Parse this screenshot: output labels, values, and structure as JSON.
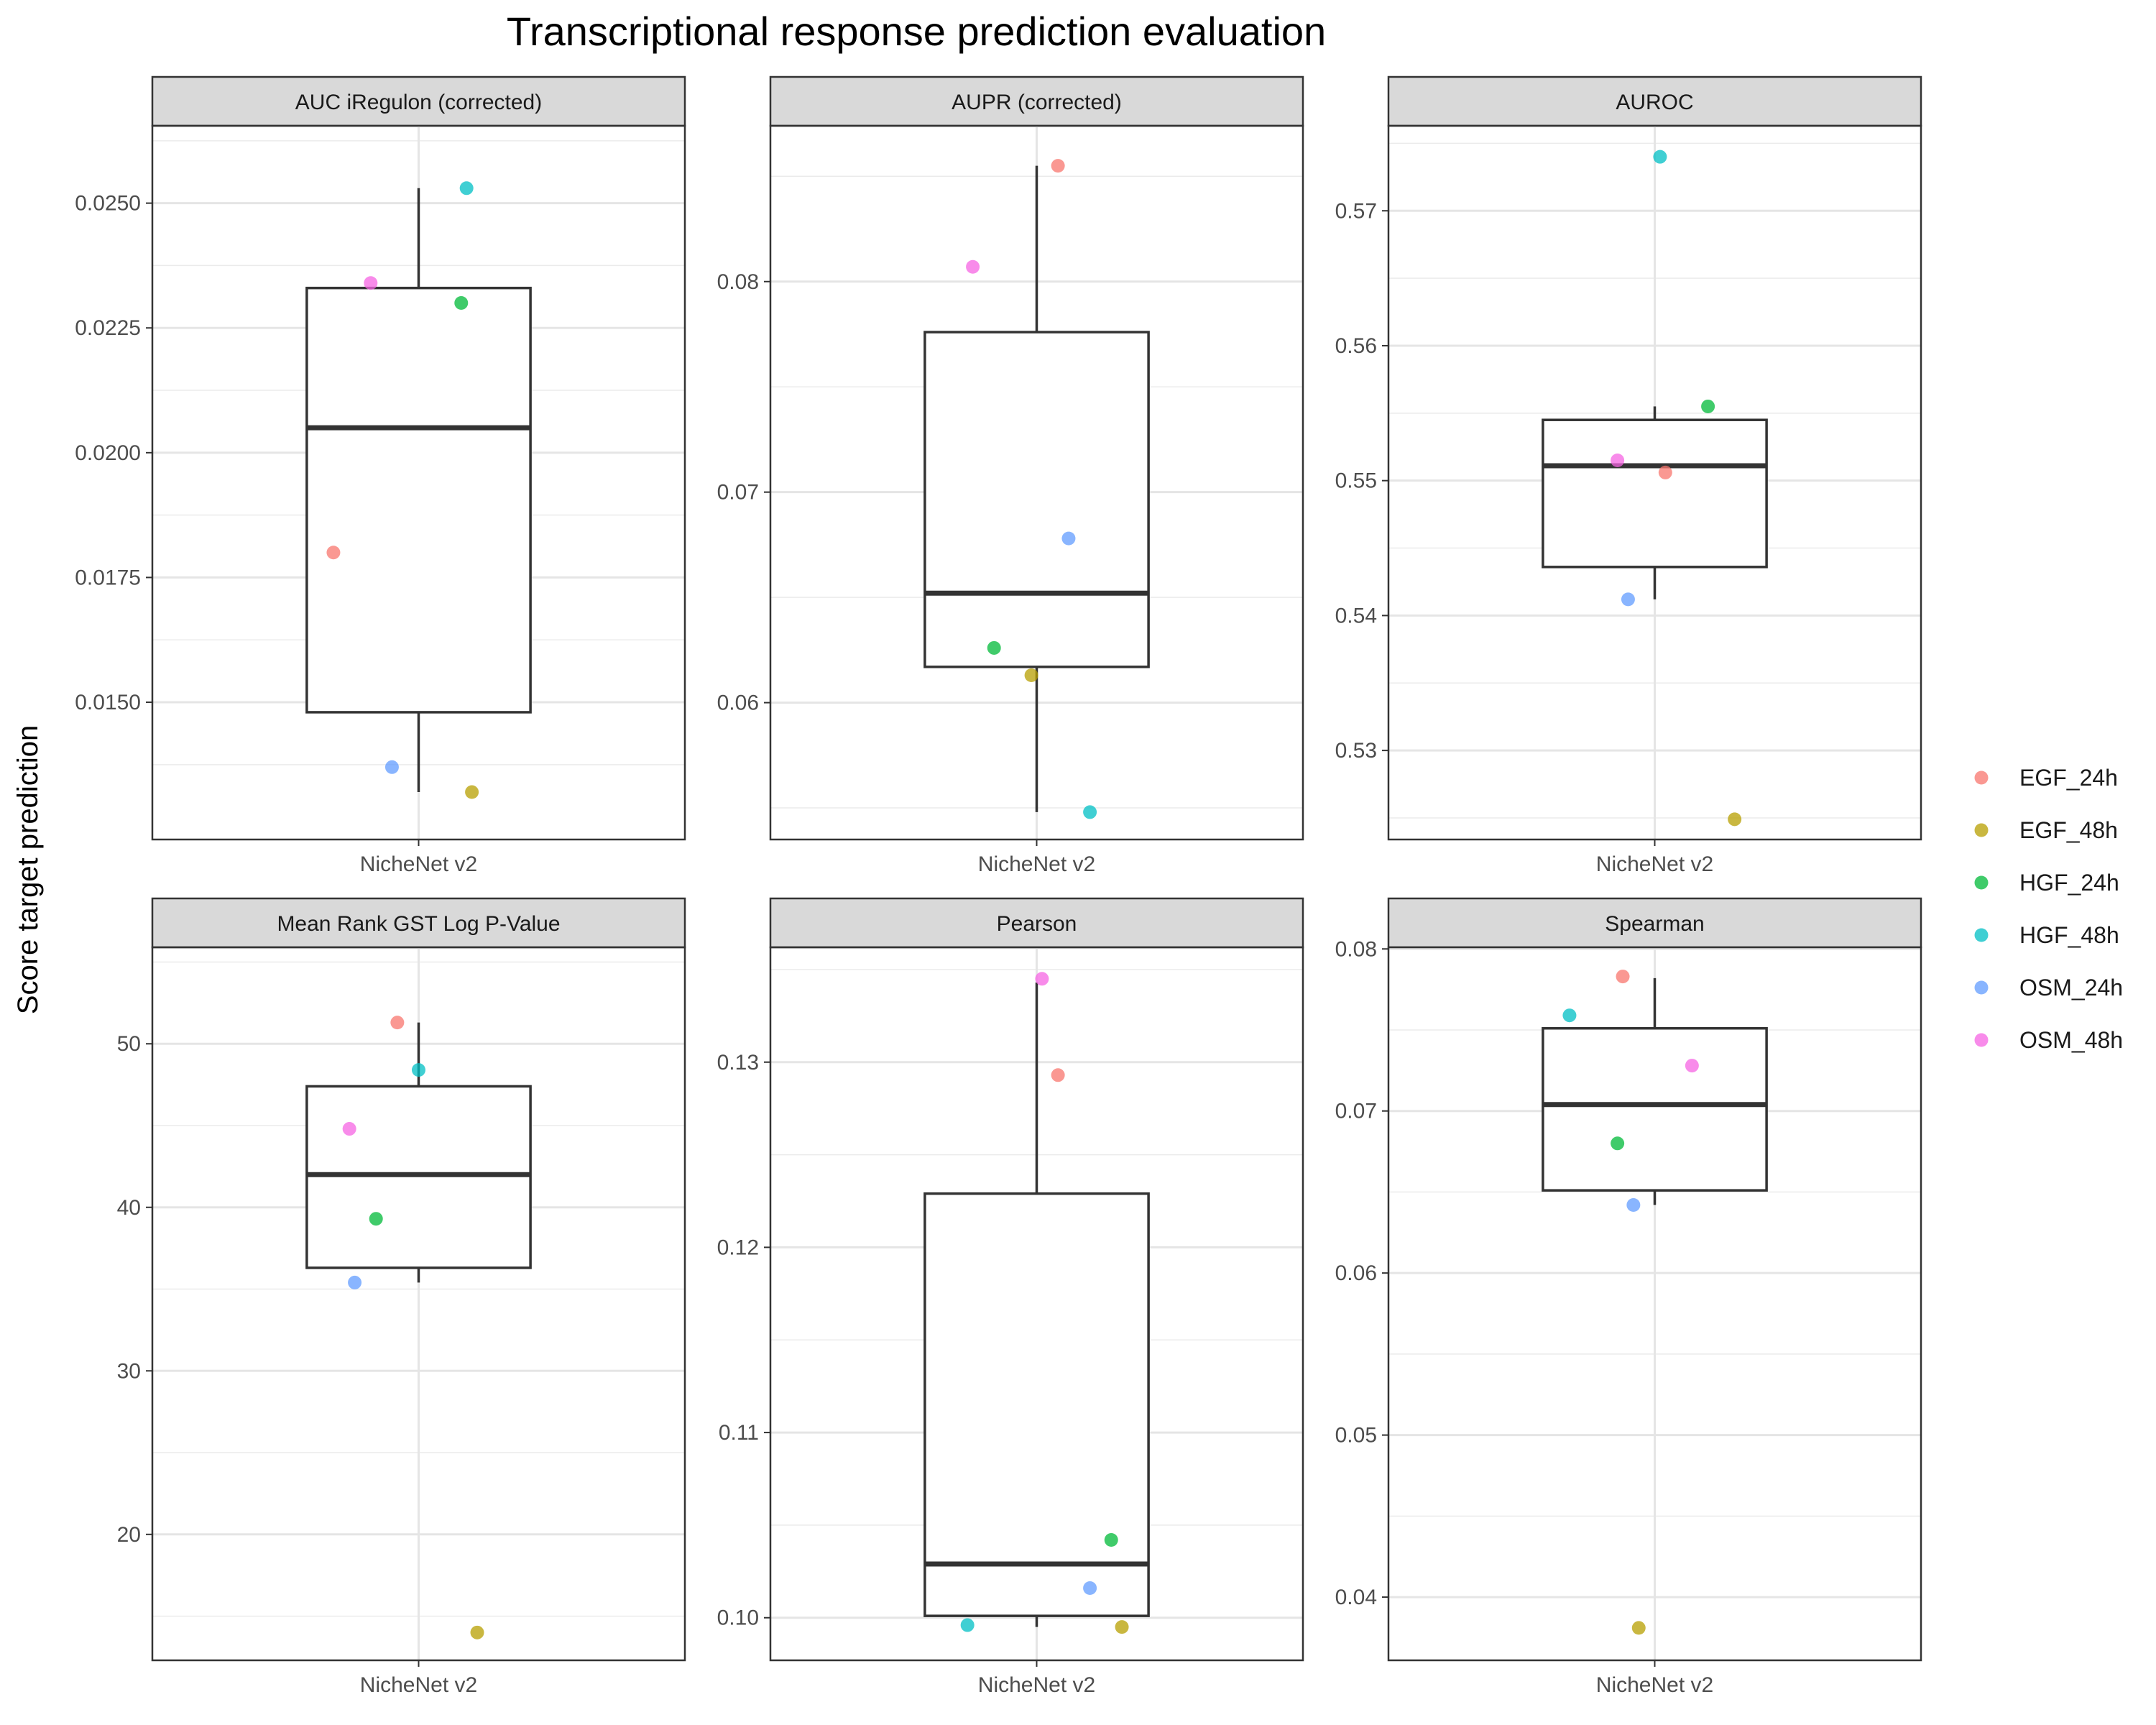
{
  "figure": {
    "title": "Transcriptional response prediction evaluation",
    "ylabel": "Score target prediction"
  },
  "chart_data": {
    "type": "box",
    "facet_layout": "2 rows x 3 columns",
    "x_category": "NicheNet v2",
    "legend": {
      "position": "right",
      "entries": [
        {
          "label": "EGF_24h",
          "color": "#F8766D"
        },
        {
          "label": "EGF_48h",
          "color": "#B79F00"
        },
        {
          "label": "HGF_24h",
          "color": "#00BA38"
        },
        {
          "label": "HGF_48h",
          "color": "#00BFC4"
        },
        {
          "label": "OSM_24h",
          "color": "#619CFF"
        },
        {
          "label": "OSM_48h",
          "color": "#F564E3"
        }
      ]
    },
    "grid": true,
    "panels": [
      {
        "title": "AUC iRegulon (corrected)",
        "ylim": [
          0.01225,
          0.02655
        ],
        "ticks": [
          0.015,
          0.0175,
          0.02,
          0.0225,
          0.025
        ],
        "tick_labels": [
          "0.0150",
          "0.0175",
          "0.0200",
          "0.0225",
          "0.0250"
        ],
        "box": {
          "whisker_low": 0.0132,
          "q1": 0.0148,
          "median": 0.0205,
          "q3": 0.0233,
          "whisker_high": 0.0253
        },
        "points": [
          {
            "group": "EGF_24h",
            "value": 0.018,
            "jitter": -0.16
          },
          {
            "group": "EGF_48h",
            "value": 0.0132,
            "jitter": 0.1
          },
          {
            "group": "HGF_24h",
            "value": 0.023,
            "jitter": 0.08
          },
          {
            "group": "HGF_48h",
            "value": 0.0253,
            "jitter": 0.09
          },
          {
            "group": "OSM_24h",
            "value": 0.0137,
            "jitter": -0.05
          },
          {
            "group": "OSM_48h",
            "value": 0.0234,
            "jitter": -0.09
          }
        ]
      },
      {
        "title": "AUPR (corrected)",
        "ylim": [
          0.0535,
          0.0874
        ],
        "ticks": [
          0.06,
          0.07,
          0.08
        ],
        "tick_labels": [
          "0.06",
          "0.07",
          "0.08"
        ],
        "box": {
          "whisker_low": 0.0548,
          "q1": 0.0617,
          "median": 0.0652,
          "q3": 0.0776,
          "whisker_high": 0.0855
        },
        "points": [
          {
            "group": "EGF_24h",
            "value": 0.0855,
            "jitter": 0.04
          },
          {
            "group": "EGF_48h",
            "value": 0.0613,
            "jitter": -0.01
          },
          {
            "group": "HGF_24h",
            "value": 0.0626,
            "jitter": -0.08
          },
          {
            "group": "HGF_48h",
            "value": 0.0548,
            "jitter": 0.1
          },
          {
            "group": "OSM_24h",
            "value": 0.0678,
            "jitter": 0.06
          },
          {
            "group": "OSM_48h",
            "value": 0.0807,
            "jitter": -0.12
          }
        ]
      },
      {
        "title": "AUROC",
        "ylim": [
          0.5234,
          0.5763
        ],
        "ticks": [
          0.53,
          0.54,
          0.55,
          0.56,
          0.57
        ],
        "tick_labels": [
          "0.53",
          "0.54",
          "0.55",
          "0.56",
          "0.57"
        ],
        "box": {
          "whisker_low": 0.5412,
          "q1": 0.5436,
          "median": 0.5511,
          "q3": 0.5545,
          "whisker_high": 0.5555
        },
        "points": [
          {
            "group": "EGF_24h",
            "value": 0.5506,
            "jitter": 0.02
          },
          {
            "group": "EGF_48h",
            "value": 0.5249,
            "jitter": 0.15
          },
          {
            "group": "HGF_24h",
            "value": 0.5555,
            "jitter": 0.1
          },
          {
            "group": "HGF_48h",
            "value": 0.574,
            "jitter": 0.01
          },
          {
            "group": "OSM_24h",
            "value": 0.5412,
            "jitter": -0.05
          },
          {
            "group": "OSM_48h",
            "value": 0.5515,
            "jitter": -0.07
          }
        ]
      },
      {
        "title": "Mean Rank GST Log P-Value",
        "ylim": [
          12.3,
          55.9
        ],
        "ticks": [
          20,
          30,
          40,
          50
        ],
        "tick_labels": [
          "20",
          "30",
          "40",
          "50"
        ],
        "box": {
          "whisker_low": 35.4,
          "q1": 36.3,
          "median": 42.0,
          "q3": 47.4,
          "whisker_high": 51.3
        },
        "points": [
          {
            "group": "EGF_24h",
            "value": 51.3,
            "jitter": -0.04
          },
          {
            "group": "EGF_48h",
            "value": 14.0,
            "jitter": 0.11
          },
          {
            "group": "HGF_24h",
            "value": 39.3,
            "jitter": -0.08
          },
          {
            "group": "HGF_48h",
            "value": 48.4,
            "jitter": 0.0
          },
          {
            "group": "OSM_24h",
            "value": 35.4,
            "jitter": -0.12
          },
          {
            "group": "OSM_48h",
            "value": 44.8,
            "jitter": -0.13
          }
        ]
      },
      {
        "title": "Pearson",
        "ylim": [
          0.0977,
          0.1362
        ],
        "ticks": [
          0.1,
          0.11,
          0.12,
          0.13
        ],
        "tick_labels": [
          "0.10",
          "0.11",
          "0.12",
          "0.13"
        ],
        "box": {
          "whisker_low": 0.0995,
          "q1": 0.1001,
          "median": 0.1029,
          "q3": 0.1229,
          "whisker_high": 0.1343
        },
        "points": [
          {
            "group": "EGF_24h",
            "value": 0.1293,
            "jitter": 0.04
          },
          {
            "group": "EGF_48h",
            "value": 0.0995,
            "jitter": 0.16
          },
          {
            "group": "HGF_24h",
            "value": 0.1042,
            "jitter": 0.14
          },
          {
            "group": "HGF_48h",
            "value": 0.0996,
            "jitter": -0.13
          },
          {
            "group": "OSM_24h",
            "value": 0.1016,
            "jitter": 0.1
          },
          {
            "group": "OSM_48h",
            "value": 0.1345,
            "jitter": 0.01
          }
        ]
      },
      {
        "title": "Spearman",
        "ylim": [
          0.0361,
          0.0801
        ],
        "ticks": [
          0.04,
          0.05,
          0.06,
          0.07,
          0.08
        ],
        "tick_labels": [
          "0.04",
          "0.05",
          "0.06",
          "0.07",
          "0.08"
        ],
        "box": {
          "whisker_low": 0.0642,
          "q1": 0.0651,
          "median": 0.0704,
          "q3": 0.0751,
          "whisker_high": 0.0782
        },
        "points": [
          {
            "group": "EGF_24h",
            "value": 0.0783,
            "jitter": -0.06
          },
          {
            "group": "EGF_48h",
            "value": 0.0381,
            "jitter": -0.03
          },
          {
            "group": "HGF_24h",
            "value": 0.068,
            "jitter": -0.07
          },
          {
            "group": "HGF_48h",
            "value": 0.0759,
            "jitter": -0.16
          },
          {
            "group": "OSM_24h",
            "value": 0.0642,
            "jitter": -0.04
          },
          {
            "group": "OSM_48h",
            "value": 0.0728,
            "jitter": 0.07
          }
        ]
      }
    ]
  }
}
